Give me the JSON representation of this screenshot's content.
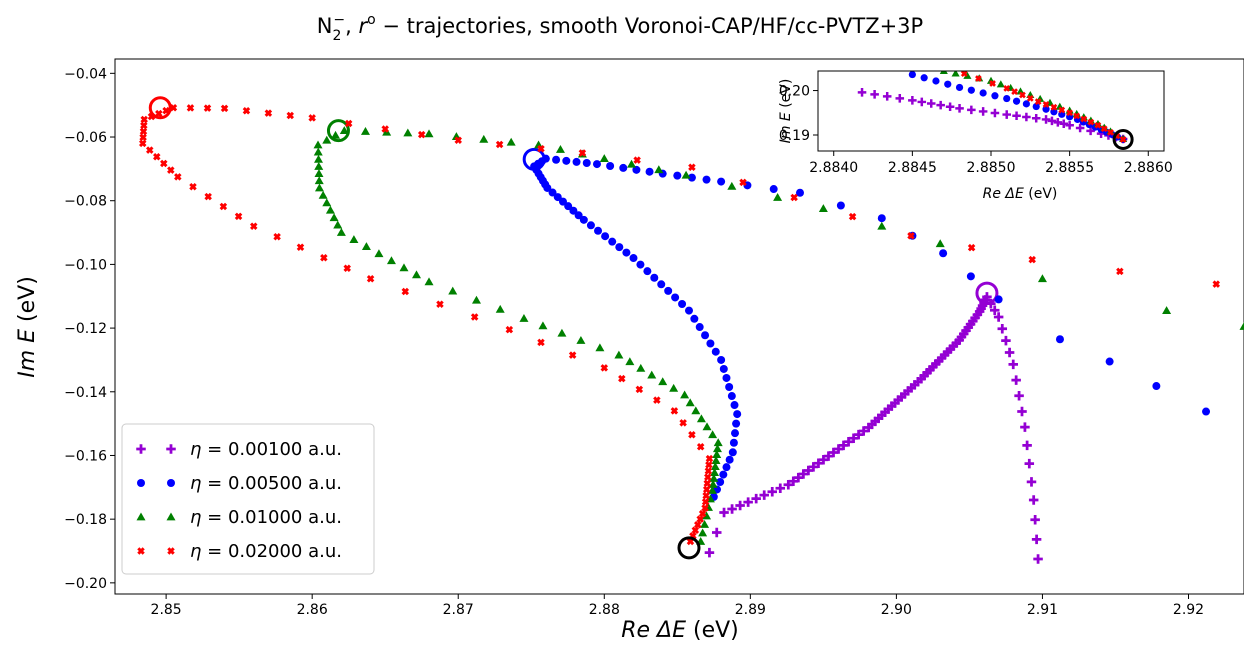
{
  "chart_data": {
    "type": "scatter",
    "title_parts": {
      "main": "N",
      "sub": "2",
      "sup": "−",
      "rest_a": ", ",
      "r": "r",
      "r_sup": "o",
      "rest_b": " − trajectories, smooth Voronoi-CAP/HF/cc-PVTZ+3P"
    },
    "main": {
      "xlabel_parts": {
        "italic": "Re ΔE",
        "plain": " (eV)"
      },
      "ylabel_parts": {
        "italic": "Im E",
        "plain": " (eV)"
      },
      "xlim": [
        2.8465,
        2.9238
      ],
      "ylim": [
        -0.2035,
        -0.0355
      ],
      "xticks": [
        "2.85",
        "2.86",
        "2.87",
        "2.88",
        "2.89",
        "2.90",
        "2.91",
        "2.92"
      ],
      "xtick_values": [
        2.85,
        2.86,
        2.87,
        2.88,
        2.89,
        2.9,
        2.91,
        2.92
      ],
      "yticks": [
        "−0.04",
        "−0.06",
        "−0.08",
        "−0.10",
        "−0.12",
        "−0.14",
        "−0.16",
        "−0.18",
        "−0.20"
      ],
      "ytick_values": [
        -0.04,
        -0.06,
        -0.08,
        -0.1,
        -0.12,
        -0.14,
        -0.16,
        -0.18,
        -0.2
      ],
      "grid": false,
      "legend_position": "lower-left",
      "series": [
        {
          "name": "η = 0.00100 a.u.",
          "legend_symbol": "η",
          "legend_value": " = 0.00100 a.u.",
          "marker": "plus",
          "color": "#9400d3",
          "polyline": [
            [
              2.8872,
              -0.1905
            ],
            [
              2.8882,
              -0.1779
            ],
            [
              2.8926,
              -0.1692
            ],
            [
              2.8981,
              -0.1512
            ],
            [
              2.9017,
              -0.1359
            ],
            [
              2.9043,
              -0.1238
            ],
            [
              2.9057,
              -0.1148
            ],
            [
              2.9062,
              -0.1102
            ],
            [
              2.907,
              -0.1165
            ],
            [
              2.908,
              -0.1314
            ],
            [
              2.9088,
              -0.1511
            ],
            [
              2.9094,
              -0.174
            ],
            [
              2.9097,
              -0.1925
            ]
          ],
          "counts": [
            2,
            8,
            16,
            16,
            13,
            9,
            5,
            3,
            4,
            4,
            4,
            3
          ],
          "circled_start": [
            2.9062,
            -0.109
          ]
        },
        {
          "name": "η = 0.00500 a.u.",
          "legend_symbol": "η",
          "legend_value": " = 0.00500 a.u.",
          "marker": "circle",
          "color": "#0000ff",
          "polyline": [
            [
              2.8875,
              -0.173
            ],
            [
              2.8888,
              -0.159
            ],
            [
              2.8891,
              -0.147
            ],
            [
              2.888,
              -0.13
            ],
            [
              2.8858,
              -0.1145
            ],
            [
              2.882,
              -0.098
            ],
            [
              2.8786,
              -0.086
            ],
            [
              2.8761,
              -0.076
            ],
            [
              2.8752,
              -0.0692
            ],
            [
              2.876,
              -0.0668
            ],
            [
              2.8795,
              -0.0685
            ],
            [
              2.884,
              -0.0715
            ],
            [
              2.888,
              -0.074
            ],
            [
              2.8934,
              -0.0775
            ],
            [
              2.899,
              -0.0855
            ],
            [
              2.9032,
              -0.0965
            ],
            [
              2.907,
              -0.111
            ],
            [
              2.9112,
              -0.1235
            ],
            [
              2.9146,
              -0.1305
            ],
            [
              2.9178,
              -0.1382
            ],
            [
              2.9212,
              -0.1462
            ]
          ],
          "counts": [
            6,
            4,
            6,
            6,
            8,
            7,
            7,
            6,
            3,
            5,
            5,
            4,
            3,
            2,
            2,
            2,
            1,
            1,
            1,
            1
          ],
          "circled_start": [
            2.8752,
            -0.067
          ]
        },
        {
          "name": "η = 0.01000 a.u.",
          "legend_symbol": "η",
          "legend_value": " = 0.01000 a.u.",
          "marker": "triangle",
          "color": "#008000",
          "polyline": [
            [
              2.8866,
              -0.187
            ],
            [
              2.8874,
              -0.171
            ],
            [
              2.8878,
              -0.156
            ],
            [
              2.8855,
              -0.141
            ],
            [
              2.881,
              -0.1285
            ],
            [
              2.8745,
              -0.117
            ],
            [
              2.868,
              -0.1055
            ],
            [
              2.862,
              -0.09
            ],
            [
              2.8605,
              -0.076
            ],
            [
              2.8604,
              -0.0625
            ],
            [
              2.8622,
              -0.058
            ],
            [
              2.868,
              -0.059
            ],
            [
              2.8755,
              -0.0625
            ],
            [
              2.88,
              -0.0668
            ],
            [
              2.8856,
              -0.072
            ],
            [
              2.895,
              -0.0825
            ],
            [
              2.903,
              -0.0935
            ],
            [
              2.91,
              -0.1045
            ],
            [
              2.9185,
              -0.1145
            ],
            [
              2.9238,
              -0.1195
            ]
          ],
          "counts": [
            6,
            8,
            6,
            6,
            5,
            4,
            7,
            6,
            6,
            3,
            4,
            4,
            3,
            3,
            3,
            2,
            1,
            1,
            1
          ],
          "circled_start": [
            2.8618,
            -0.058
          ]
        },
        {
          "name": "η = 0.02000 a.u.",
          "legend_symbol": "η",
          "legend_value": " = 0.02000 a.u.",
          "marker": "x",
          "color": "#ff0000",
          "polyline": [
            [
              2.8859,
              -0.187
            ],
            [
              2.8869,
              -0.1765
            ],
            [
              2.8872,
              -0.161
            ],
            [
              2.8848,
              -0.146
            ],
            [
              2.88,
              -0.1325
            ],
            [
              2.8735,
              -0.1205
            ],
            [
              2.864,
              -0.1045
            ],
            [
              2.856,
              -0.088
            ],
            [
              2.8508,
              -0.0725
            ],
            [
              2.8484,
              -0.062
            ],
            [
              2.8485,
              -0.0545
            ],
            [
              2.8505,
              -0.0508
            ],
            [
              2.854,
              -0.051
            ],
            [
              2.86,
              -0.054
            ],
            [
              2.87,
              -0.061
            ],
            [
              2.8785,
              -0.065
            ],
            [
              2.886,
              -0.0695
            ],
            [
              2.893,
              -0.079
            ],
            [
              2.901,
              -0.091
            ],
            [
              2.9093,
              -0.0985
            ],
            [
              2.9153,
              -0.1022
            ],
            [
              2.9219,
              -0.1062
            ]
          ],
          "counts": [
            6,
            8,
            4,
            4,
            3,
            4,
            5,
            5,
            5,
            4,
            4,
            3,
            4,
            4,
            3,
            2,
            2,
            2,
            2,
            1,
            1
          ],
          "circled_start": [
            2.8496,
            -0.0508
          ]
        }
      ],
      "black_circle": [
        2.8858,
        -0.189
      ]
    },
    "inset": {
      "xlabel_parts": {
        "italic": "Re ΔE",
        "plain": " (eV)"
      },
      "ylabel_parts": {
        "italic": "Im E",
        "plain": " (eV)"
      },
      "xlim": [
        2.8839,
        2.8861
      ],
      "ylim": [
        0.1864,
        0.2044
      ],
      "xticks": [
        "2.8840",
        "2.8845",
        "2.8850",
        "2.8855",
        "2.8860"
      ],
      "xtick_values": [
        2.884,
        2.8845,
        2.885,
        2.8855,
        2.886
      ],
      "yticks": [
        "0.20",
        "0.19"
      ],
      "ytick_values": [
        0.2,
        0.19
      ],
      "series": [
        {
          "marker": "plus",
          "color": "#9400d3",
          "polyline": [
            [
              2.88418,
              0.1996
            ],
            [
              2.8845,
              0.1978
            ],
            [
              2.8848,
              0.196
            ],
            [
              2.8851,
              0.1946
            ],
            [
              2.88535,
              0.1935
            ],
            [
              2.8855,
              0.1922
            ],
            [
              2.8857,
              0.1903
            ],
            [
              2.88584,
              0.1891
            ]
          ],
          "counts": [
            4,
            5,
            4,
            4,
            4,
            3,
            3
          ]
        },
        {
          "marker": "circle",
          "color": "#0000ff",
          "polyline": [
            [
              2.8845,
              0.2036
            ],
            [
              2.8848,
              0.2007
            ],
            [
              2.8851,
              0.1982
            ],
            [
              2.88535,
              0.1958
            ],
            [
              2.88555,
              0.1935
            ],
            [
              2.8857,
              0.1912
            ],
            [
              2.88584,
              0.189
            ]
          ],
          "counts": [
            4,
            4,
            4,
            4,
            4,
            4
          ]
        },
        {
          "marker": "triangle",
          "color": "#008000",
          "polyline": [
            [
              2.8847,
              0.2044
            ],
            [
              2.885,
              0.2022
            ],
            [
              2.88525,
              0.199
            ],
            [
              2.8855,
              0.1955
            ],
            [
              2.88568,
              0.1925
            ],
            [
              2.88584,
              0.1891
            ]
          ],
          "counts": [
            4,
            4,
            4,
            4,
            4
          ]
        },
        {
          "marker": "x",
          "color": "#ff0000",
          "polyline": [
            [
              2.88483,
              0.2038
            ],
            [
              2.8851,
              0.2005
            ],
            [
              2.8853,
              0.1975
            ],
            [
              2.8855,
              0.195
            ],
            [
              2.88568,
              0.1922
            ],
            [
              2.88584,
              0.189
            ]
          ],
          "counts": [
            3,
            4,
            4,
            4,
            4
          ]
        }
      ],
      "black_circle": [
        2.88584,
        0.189
      ]
    }
  }
}
